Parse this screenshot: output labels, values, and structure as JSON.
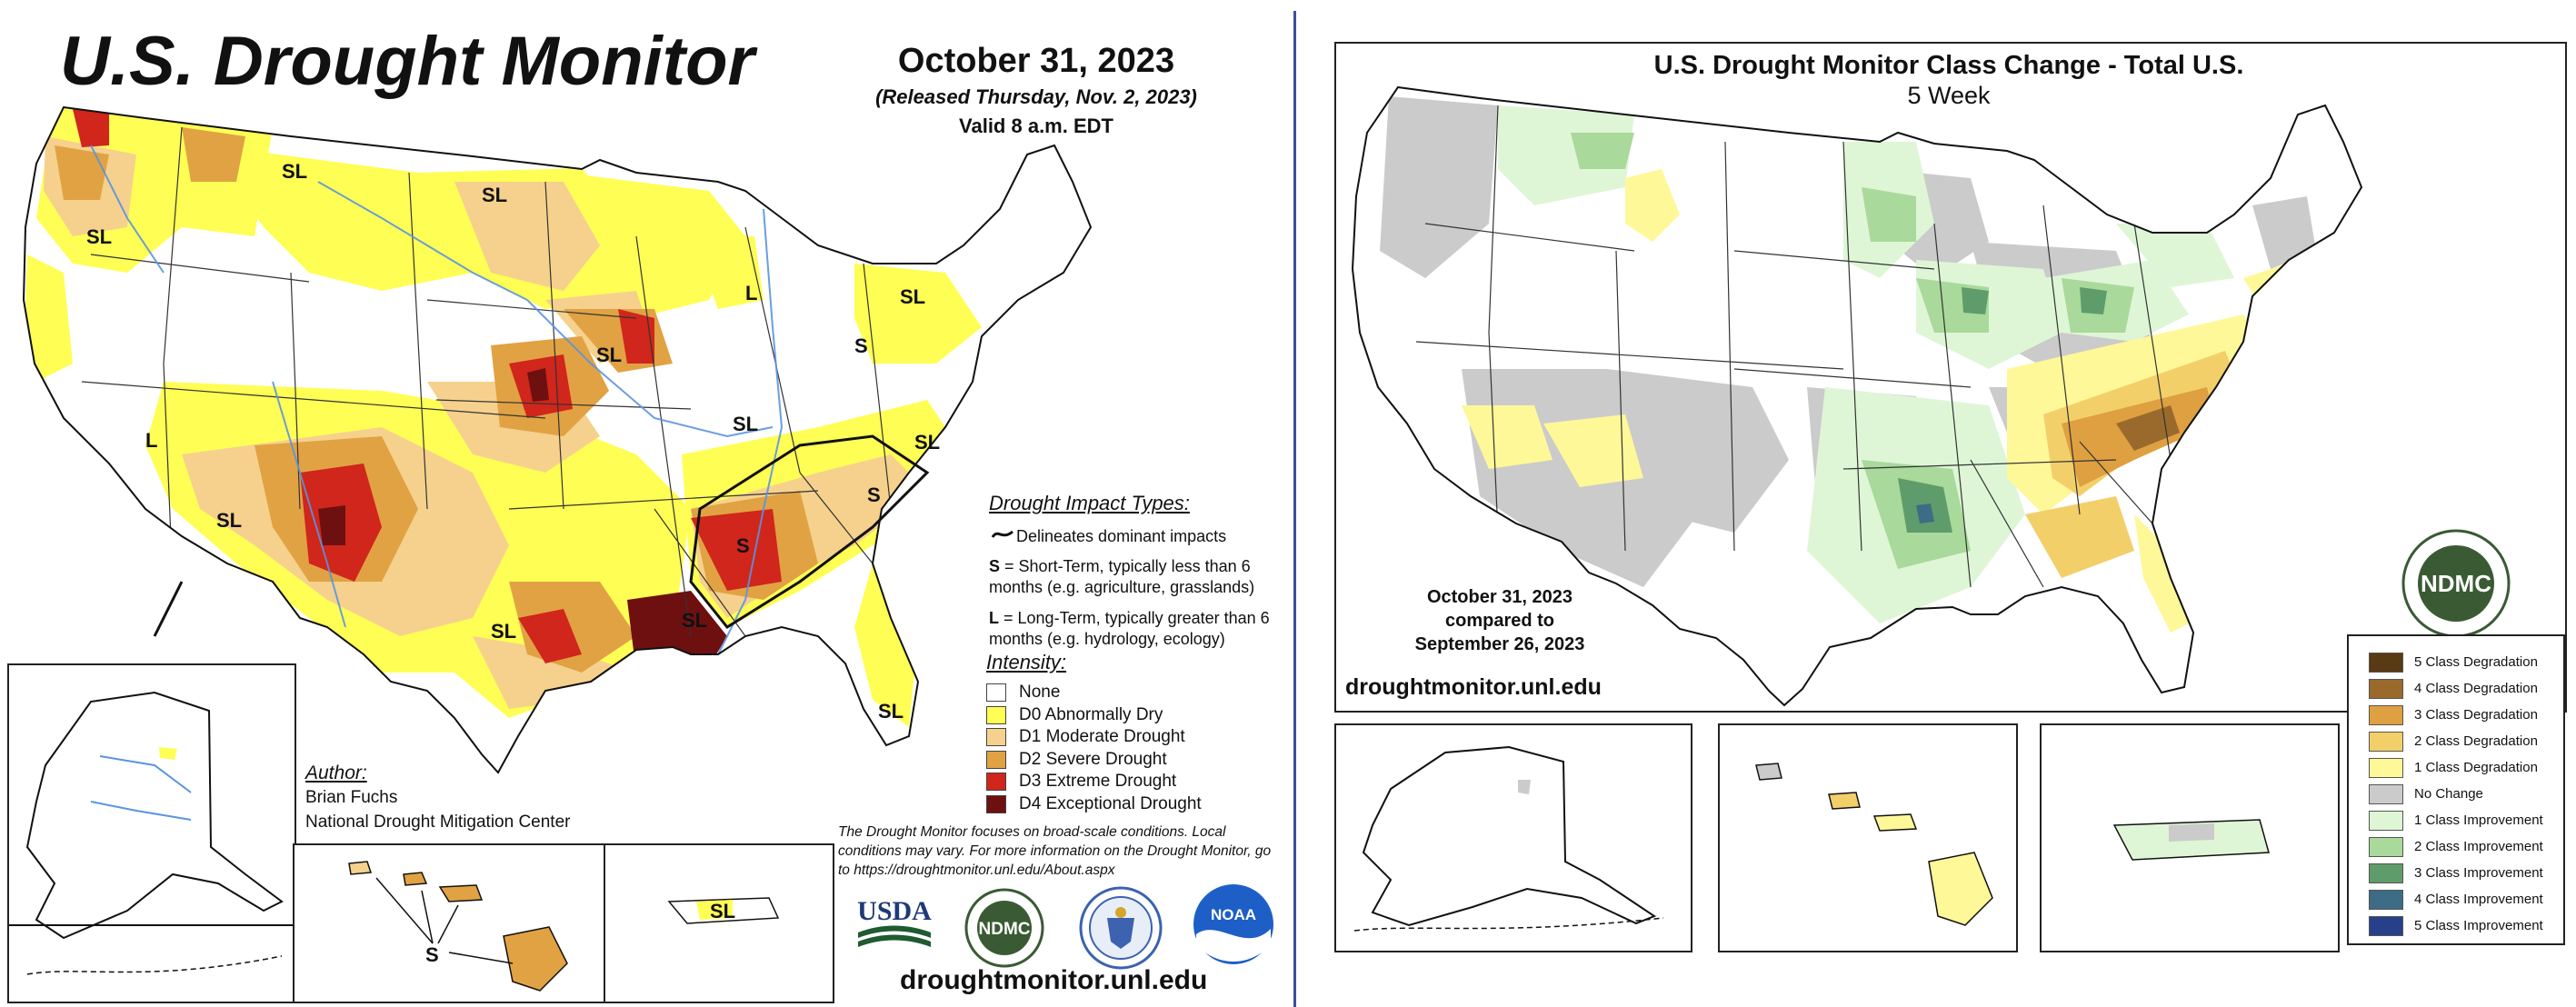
{
  "left_panel": {
    "title": "U.S. Drought Monitor",
    "date": "October 31, 2023",
    "released": "(Released Thursday, Nov. 2, 2023)",
    "valid": "Valid 8 a.m. EDT",
    "impact_types": {
      "title": "Drought Impact Types:",
      "delineates": "Delineates dominant impacts",
      "short_term_key": "S",
      "short_term_text": "= Short-Term, typically less than 6 months (e.g. agriculture, grasslands)",
      "long_term_key": "L",
      "long_term_text": "= Long-Term, typically greater than 6 months (e.g. hydrology, ecology)"
    },
    "intensity": {
      "title": "Intensity:",
      "items": [
        {
          "label": "None",
          "color": "#ffffff"
        },
        {
          "label": "D0 Abnormally Dry",
          "color": "#fffe55"
        },
        {
          "label": "D1 Moderate Drought",
          "color": "#f5d18d"
        },
        {
          "label": "D2 Severe Drought",
          "color": "#e1a243"
        },
        {
          "label": "D3 Extreme Drought",
          "color": "#d0261c"
        },
        {
          "label": "D4 Exceptional Drought",
          "color": "#6e1010"
        }
      ]
    },
    "author": {
      "title": "Author:",
      "name": "Brian Fuchs",
      "org": "National Drought Mitigation Center"
    },
    "note": "The Drought Monitor focuses on broad-scale conditions. Local conditions may vary. For more information on the Drought Monitor, go to https://droughtmonitor.unl.edu/About.aspx",
    "logos": {
      "usda": "USDA",
      "ndmc": "NDMC",
      "noaa": "NOAA"
    },
    "site": "droughtmonitor.unl.edu",
    "map_labels": [
      "SL",
      "SL",
      "SL",
      "SL",
      "L",
      "SL",
      "S",
      "SL",
      "SL",
      "L",
      "SL",
      "S",
      "S",
      "SL",
      "SL",
      "SL",
      "SL",
      "S",
      "SL"
    ]
  },
  "right_panel": {
    "title": "U.S. Drought Monitor Class Change - Total U.S.",
    "subtitle": "5 Week",
    "compare_date": "October 31, 2023",
    "compare_mid": "compared to",
    "compare_base": "September 26, 2023",
    "site": "droughtmonitor.unl.edu",
    "ndmc_logo": "NDMC",
    "legend": [
      {
        "label": "5 Class Degradation",
        "color": "#5a3a12"
      },
      {
        "label": "4 Class Degradation",
        "color": "#9a6a2c"
      },
      {
        "label": "3 Class Degradation",
        "color": "#dea041"
      },
      {
        "label": "2 Class Degradation",
        "color": "#f3cf6a"
      },
      {
        "label": "1 Class Degradation",
        "color": "#fff898"
      },
      {
        "label": "No Change",
        "color": "#cbcbcb"
      },
      {
        "label": "1 Class Improvement",
        "color": "#def6d6"
      },
      {
        "label": "2 Class Improvement",
        "color": "#a9d99b"
      },
      {
        "label": "3 Class Improvement",
        "color": "#5f9c6b"
      },
      {
        "label": "4 Class Improvement",
        "color": "#3d6c86"
      },
      {
        "label": "5 Class Improvement",
        "color": "#27408a"
      }
    ]
  }
}
